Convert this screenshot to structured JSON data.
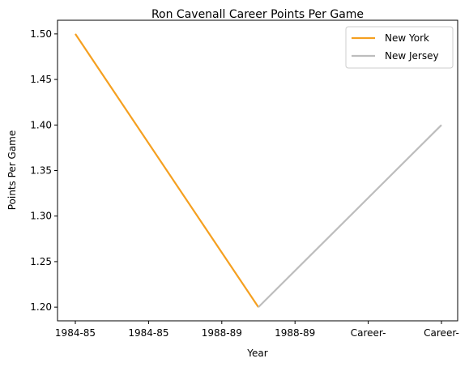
{
  "chart_data": {
    "type": "line",
    "title": "Ron Cavenall Career Points Per Game",
    "xlabel": "Year",
    "ylabel": "Points Per Game",
    "categories": [
      "1984-85",
      "1984-85",
      "1988-89",
      "1988-89",
      "Career-",
      "Career-"
    ],
    "yticks": [
      "1.50",
      "1.45",
      "1.40",
      "1.35",
      "1.30",
      "1.25",
      "1.20"
    ],
    "ylim": [
      1.185,
      1.515
    ],
    "legend_position": "top-right",
    "series": [
      {
        "name": "New York",
        "color": "#f5a020",
        "points": [
          {
            "x": 0,
            "y": 1.5
          },
          {
            "x": 2.5,
            "y": 1.2
          }
        ]
      },
      {
        "name": "New Jersey",
        "color": "#bdbdbd",
        "points": [
          {
            "x": 2.5,
            "y": 1.2
          },
          {
            "x": 5,
            "y": 1.4
          }
        ]
      }
    ]
  }
}
